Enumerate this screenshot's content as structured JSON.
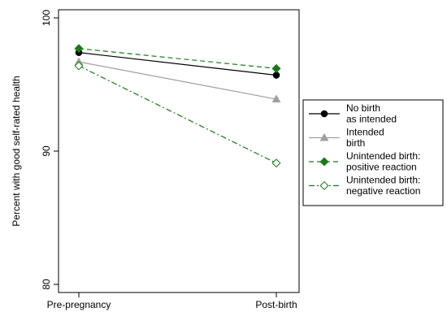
{
  "chart_data": {
    "type": "line",
    "ylabel": "Percent with good self-rated health",
    "xlabel": "",
    "categories": [
      "Pre-pregnancy",
      "Post-birth"
    ],
    "y_ticks": [
      "80",
      "90",
      "100"
    ],
    "ylim": [
      80,
      100
    ],
    "grid": false,
    "legend_position": "right",
    "series": [
      {
        "name": "No birth\nas intended",
        "values": [
          97.4,
          95.7
        ],
        "color": "#000000",
        "marker": "circle",
        "dash": "solid"
      },
      {
        "name": "Intended\nbirth",
        "values": [
          96.7,
          93.9
        ],
        "color": "#a0a0a0",
        "marker": "triangle",
        "dash": "solid"
      },
      {
        "name": "Unintended birth:\npositive reaction",
        "values": [
          97.7,
          96.2
        ],
        "color": "#1a7a1a",
        "marker": "diamond",
        "dash": "dashed"
      },
      {
        "name": "Unintended birth:\nnegative reaction",
        "values": [
          96.4,
          89.1
        ],
        "color": "#1a7a1a",
        "marker": "diamond-open",
        "dash": "dashdot"
      }
    ]
  }
}
